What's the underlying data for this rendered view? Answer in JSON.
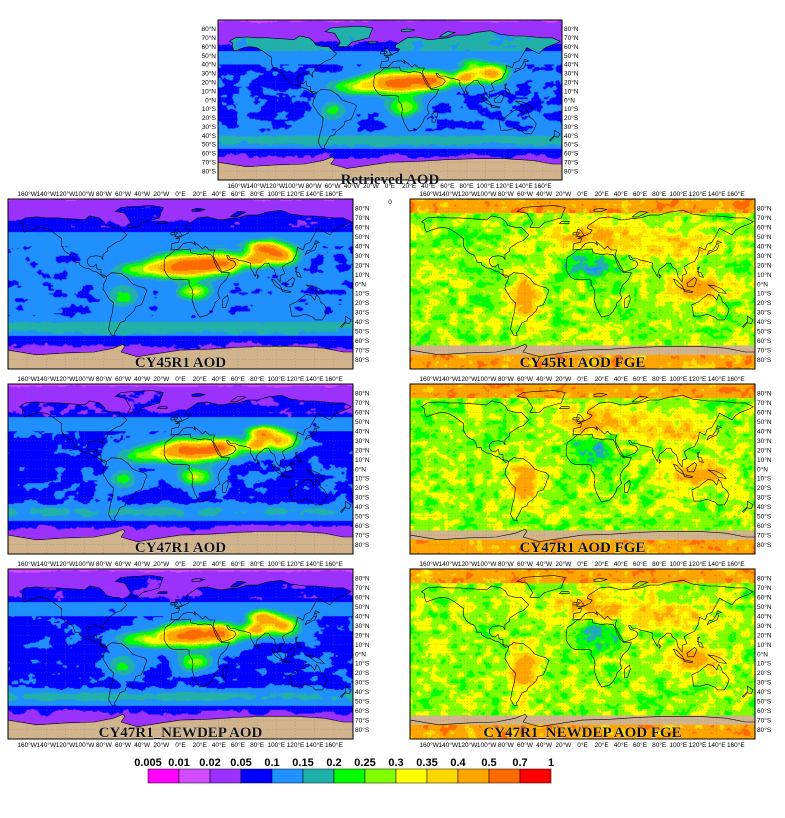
{
  "figure": {
    "panels": [
      {
        "id": "retrieved",
        "title": "Retrieved AOD",
        "field": "retrieved"
      },
      {
        "id": "cy45r1_aod",
        "title": "CY45R1 AOD",
        "field": "model"
      },
      {
        "id": "cy45r1_fge",
        "title": "CY45R1 AOD FGE",
        "field": "fge"
      },
      {
        "id": "cy47r1_aod",
        "title": "CY47R1 AOD",
        "field": "model"
      },
      {
        "id": "cy47r1_fge",
        "title": "CY47R1 AOD FGE",
        "field": "fge"
      },
      {
        "id": "newdep_aod",
        "title": "CY47R1_NEWDEP AOD",
        "field": "model"
      },
      {
        "id": "newdep_fge",
        "title": "CY47R1_NEWDEP AOD FGE",
        "field": "fge"
      }
    ],
    "lon_ticks": [
      "160°W",
      "140°W",
      "120°W",
      "100°W",
      "80°W",
      "60°W",
      "40°W",
      "20°W",
      "0°E",
      "20°E",
      "40°E",
      "60°E",
      "80°E",
      "100°E",
      "120°E",
      "140°E",
      "160°E"
    ],
    "lat_ticks": [
      "80°N",
      "70°N",
      "60°N",
      "50°N",
      "40°N",
      "30°N",
      "20°N",
      "10°N",
      "0°N",
      "10°S",
      "20°S",
      "30°S",
      "40°S",
      "50°S",
      "60°S",
      "70°S",
      "80°S"
    ],
    "extra_label": "0",
    "colorbar": {
      "levels": [
        "0.005",
        "0.01",
        "0.02",
        "0.05",
        "0.1",
        "0.15",
        "0.2",
        "0.25",
        "0.3",
        "0.35",
        "0.4",
        "0.5",
        "0.7",
        "1"
      ],
      "colors": [
        "#ff00ff",
        "#d24bff",
        "#9b30ff",
        "#0000ff",
        "#1e90ff",
        "#20b2aa",
        "#00ff00",
        "#7fff00",
        "#ffff00",
        "#ffd700",
        "#ffa500",
        "#ff6a00",
        "#ff0000"
      ]
    },
    "land_color": "#d2b48c"
  }
}
